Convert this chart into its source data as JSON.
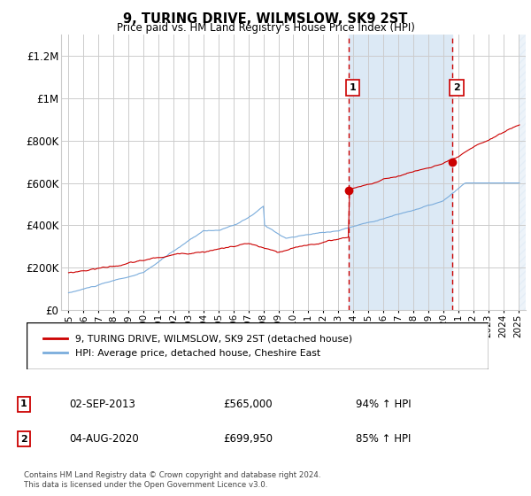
{
  "title": "9, TURING DRIVE, WILMSLOW, SK9 2ST",
  "subtitle": "Price paid vs. HM Land Registry's House Price Index (HPI)",
  "ylim": [
    0,
    1300000
  ],
  "yticks": [
    0,
    200000,
    400000,
    600000,
    800000,
    1000000,
    1200000
  ],
  "ytick_labels": [
    "£0",
    "£200K",
    "£400K",
    "£600K",
    "£800K",
    "£1M",
    "£1.2M"
  ],
  "red_line_color": "#cc0000",
  "blue_line_color": "#7aacdc",
  "shaded_region_color": "#dce9f5",
  "dashed_line_color": "#cc0000",
  "grid_color": "#cccccc",
  "sale1_x": 2013.67,
  "sale1_y": 565000,
  "sale1_label": "1",
  "sale2_x": 2020.58,
  "sale2_y": 699950,
  "sale2_label": "2",
  "annotation1_date": "02-SEP-2013",
  "annotation1_price": "£565,000",
  "annotation1_hpi": "94% ↑ HPI",
  "annotation2_date": "04-AUG-2020",
  "annotation2_price": "£699,950",
  "annotation2_hpi": "85% ↑ HPI",
  "legend_label_red": "9, TURING DRIVE, WILMSLOW, SK9 2ST (detached house)",
  "legend_label_blue": "HPI: Average price, detached house, Cheshire East",
  "footer": "Contains HM Land Registry data © Crown copyright and database right 2024.\nThis data is licensed under the Open Government Licence v3.0.",
  "shaded_x_start": 2013.67,
  "shaded_x_end": 2020.58,
  "x_min": 1994.5,
  "x_max": 2025.5
}
